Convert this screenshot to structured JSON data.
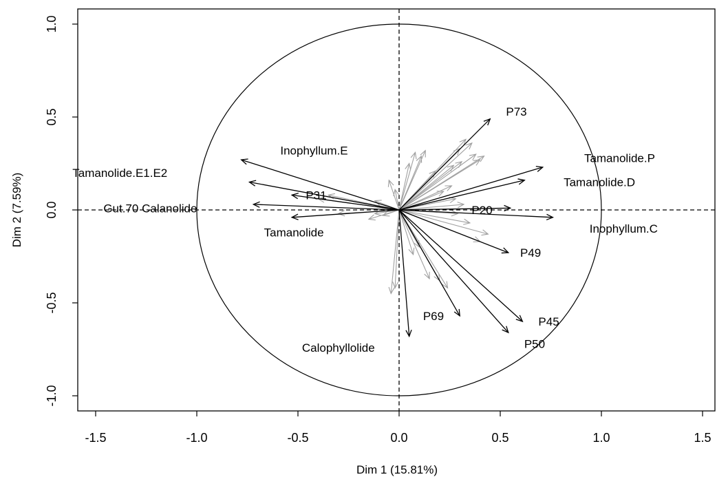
{
  "chart_data": {
    "type": "scatter",
    "subtype": "pca-variables-factor-map",
    "xlabel": "Dim 1 (15.81%)",
    "ylabel": "Dim 2 (7.59%)",
    "xlim": [
      -1.5,
      1.5
    ],
    "ylim": [
      -1.0,
      1.0
    ],
    "x_ticks": [
      "-1.5",
      "-1.0",
      "-0.5",
      "0.0",
      "0.5",
      "1.0",
      "1.5"
    ],
    "y_ticks": [
      "-1.0",
      "-0.5",
      "0.0",
      "0.5",
      "1.0"
    ],
    "reference_lines": {
      "x": 0,
      "y": 0,
      "style": "dashed"
    },
    "unit_circle": true,
    "colors": {
      "highlighted": "#000000",
      "other": "#a0a0a0",
      "axes": "#000000"
    },
    "highlighted_vectors": [
      {
        "x": 0.45,
        "y": 0.49
      },
      {
        "x": 0.71,
        "y": 0.23
      },
      {
        "x": 0.62,
        "y": 0.16
      },
      {
        "x": 0.55,
        "y": 0.01
      },
      {
        "x": 0.76,
        "y": -0.04
      },
      {
        "x": 0.54,
        "y": -0.23
      },
      {
        "x": 0.61,
        "y": -0.6
      },
      {
        "x": 0.54,
        "y": -0.66
      },
      {
        "x": 0.3,
        "y": -0.57
      },
      {
        "x": 0.05,
        "y": -0.68
      },
      {
        "x": -0.78,
        "y": 0.27
      },
      {
        "x": -0.74,
        "y": 0.15
      },
      {
        "x": -0.72,
        "y": 0.03
      },
      {
        "x": -0.53,
        "y": 0.08
      },
      {
        "x": -0.53,
        "y": -0.04
      }
    ],
    "labels": [
      {
        "text": "P73",
        "x": 0.58,
        "y": 0.53
      },
      {
        "text": "Inophyllum.E",
        "x": -0.42,
        "y": 0.32
      },
      {
        "text": "Tamanolide.P",
        "x": 1.09,
        "y": 0.28
      },
      {
        "text": "Tamanolide.E1.E2",
        "x": -1.38,
        "y": 0.2
      },
      {
        "text": "Tamanolide.D",
        "x": 0.99,
        "y": 0.15
      },
      {
        "text": "P31",
        "x": -0.41,
        "y": 0.08
      },
      {
        "text": "Gut.70 Calanolide",
        "x": -1.23,
        "y": 0.01
      },
      {
        "text": "P20",
        "x": 0.41,
        "y": 0.0
      },
      {
        "text": "Tamanolide",
        "x": -0.52,
        "y": -0.12
      },
      {
        "text": "Inophyllum.C",
        "x": 1.11,
        "y": -0.1
      },
      {
        "text": "P49",
        "x": 0.65,
        "y": -0.23
      },
      {
        "text": "P69",
        "x": 0.17,
        "y": -0.57
      },
      {
        "text": "P45",
        "x": 0.74,
        "y": -0.6
      },
      {
        "text": "Calophyllolide",
        "x": -0.3,
        "y": -0.74
      },
      {
        "text": "P50",
        "x": 0.67,
        "y": -0.72
      }
    ],
    "gray_vectors": [
      {
        "x": 0.33,
        "y": 0.38
      },
      {
        "x": 0.36,
        "y": 0.36
      },
      {
        "x": 0.3,
        "y": 0.33
      },
      {
        "x": 0.38,
        "y": 0.3
      },
      {
        "x": 0.42,
        "y": 0.29
      },
      {
        "x": 0.27,
        "y": 0.24
      },
      {
        "x": 0.31,
        "y": 0.26
      },
      {
        "x": 0.4,
        "y": 0.27
      },
      {
        "x": 0.18,
        "y": 0.21
      },
      {
        "x": 0.11,
        "y": 0.29
      },
      {
        "x": 0.08,
        "y": 0.31
      },
      {
        "x": 0.13,
        "y": 0.32
      },
      {
        "x": 0.05,
        "y": 0.25
      },
      {
        "x": -0.05,
        "y": 0.16
      },
      {
        "x": -0.02,
        "y": 0.11
      },
      {
        "x": 0.22,
        "y": 0.1
      },
      {
        "x": 0.26,
        "y": 0.13
      },
      {
        "x": 0.28,
        "y": 0.06
      },
      {
        "x": 0.32,
        "y": 0.03
      },
      {
        "x": 0.29,
        "y": -0.02
      },
      {
        "x": 0.35,
        "y": -0.07
      },
      {
        "x": 0.44,
        "y": -0.13
      },
      {
        "x": 0.4,
        "y": -0.17
      },
      {
        "x": 0.1,
        "y": -0.2
      },
      {
        "x": 0.07,
        "y": -0.24
      },
      {
        "x": 0.2,
        "y": -0.38
      },
      {
        "x": 0.24,
        "y": -0.42
      },
      {
        "x": 0.15,
        "y": -0.37
      },
      {
        "x": -0.02,
        "y": -0.42
      },
      {
        "x": -0.04,
        "y": -0.45
      },
      {
        "x": -0.08,
        "y": -0.03
      },
      {
        "x": -0.12,
        "y": 0.05
      },
      {
        "x": -0.35,
        "y": 0.08
      },
      {
        "x": -0.4,
        "y": 0.06
      },
      {
        "x": -0.3,
        "y": -0.02
      },
      {
        "x": -0.15,
        "y": -0.05
      },
      {
        "x": -0.12,
        "y": -0.02
      }
    ]
  }
}
